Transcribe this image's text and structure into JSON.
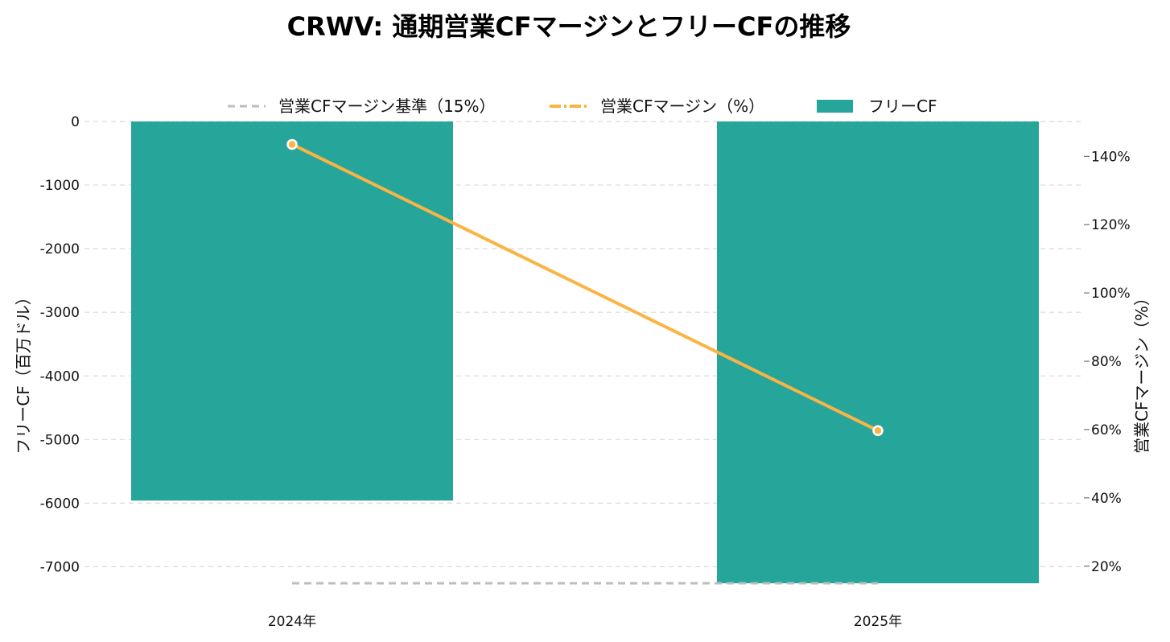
{
  "chart_data": {
    "type": "bar",
    "title": "CRWV: 通期営業CFマージンとフリーCFの推移",
    "categories": [
      "2024年",
      "2025年"
    ],
    "bar_series": {
      "name": "フリーCF",
      "values": [
        -5960,
        -7260
      ],
      "color": "#26A69A"
    },
    "line_series": {
      "name": "営業CFマージン（%）",
      "values": [
        143.5,
        59.7
      ],
      "color": "#FBB444"
    },
    "reference_line": {
      "name": "営業CFマージン基準（15%）",
      "value": 15,
      "color": "#BDBDBD"
    },
    "y_left": {
      "label": "フリーCF（百万ドル）",
      "ticks": [
        "0",
        "-1000",
        "-2000",
        "-3000",
        "-4000",
        "-5000",
        "-6000",
        "-7000"
      ],
      "tick_values": [
        0,
        -1000,
        -2000,
        -3000,
        -4000,
        -5000,
        -6000,
        -7000
      ],
      "lim": [
        -7260,
        0
      ]
    },
    "y_right": {
      "label": "営業CFマージン（%）",
      "ticks": [
        "20%",
        "40%",
        "60%",
        "80%",
        "100%",
        "120%",
        "140%"
      ],
      "tick_values": [
        20,
        40,
        60,
        80,
        100,
        120,
        140
      ],
      "lim": [
        15,
        150.2
      ]
    },
    "grid": true,
    "legend_position": "top-center"
  }
}
